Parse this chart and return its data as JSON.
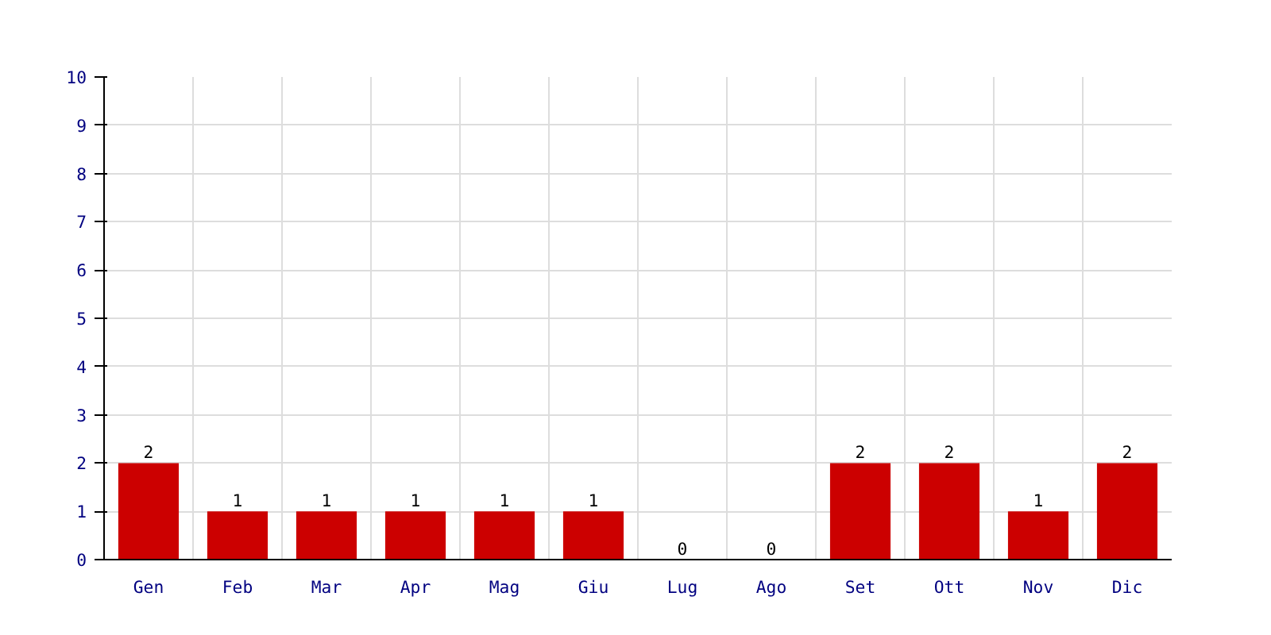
{
  "chart_data": {
    "type": "bar",
    "categories": [
      "Gen",
      "Feb",
      "Mar",
      "Apr",
      "Mag",
      "Giu",
      "Lug",
      "Ago",
      "Set",
      "Ott",
      "Nov",
      "Dic"
    ],
    "values": [
      2,
      1,
      1,
      1,
      1,
      1,
      0,
      0,
      2,
      2,
      1,
      2
    ],
    "color": "#cc0000",
    "ylim": [
      0,
      10
    ],
    "yticks": [
      0,
      1,
      2,
      3,
      4,
      5,
      6,
      7,
      8,
      9,
      10
    ],
    "grid": true,
    "data_labels": true
  }
}
